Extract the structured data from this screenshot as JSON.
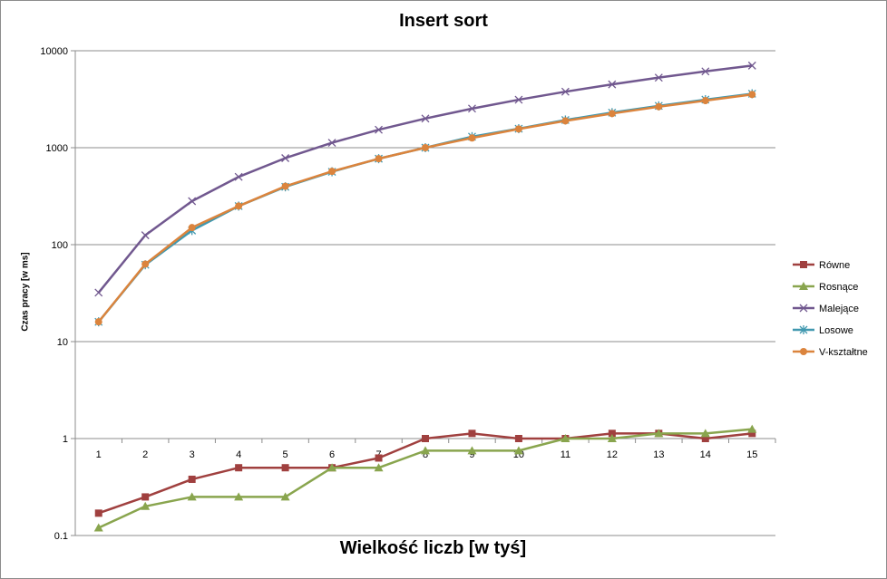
{
  "chart_data": {
    "type": "line",
    "title": "Insert sort",
    "xlabel": "Wielkość liczb [w tyś]",
    "ylabel": "Czas pracy [w ms]",
    "y_scale": "log",
    "ylim": [
      0.1,
      10000
    ],
    "y_ticks": [
      "0.1",
      "1",
      "10",
      "100",
      "1000",
      "10000"
    ],
    "categories": [
      "1",
      "2",
      "3",
      "4",
      "5",
      "6",
      "7",
      "8",
      "9",
      "10",
      "11",
      "12",
      "13",
      "14",
      "15"
    ],
    "grid": "horizontal",
    "legend_position": "right",
    "series": [
      {
        "name": "Równe",
        "color": "#a0403f",
        "marker": "square",
        "values": [
          0.17,
          0.25,
          0.38,
          0.5,
          0.5,
          0.5,
          0.63,
          1.0,
          1.13,
          1.0,
          1.0,
          1.13,
          1.13,
          1.0,
          1.13
        ]
      },
      {
        "name": "Rosnące",
        "color": "#89a54e",
        "marker": "triangle",
        "values": [
          0.12,
          0.2,
          0.25,
          0.25,
          0.25,
          0.5,
          0.5,
          0.75,
          0.75,
          0.75,
          1.0,
          1.0,
          1.13,
          1.13,
          1.25
        ]
      },
      {
        "name": "Malejące",
        "color": "#71588f",
        "marker": "x",
        "values": [
          32,
          125,
          281,
          500,
          781,
          1125,
          1531,
          2000,
          2531,
          3125,
          3781,
          4500,
          5281,
          6125,
          7031
        ]
      },
      {
        "name": "Losowe",
        "color": "#4198af",
        "marker": "star",
        "values": [
          16,
          62,
          140,
          250,
          395,
          565,
          770,
          1000,
          1300,
          1570,
          1930,
          2300,
          2700,
          3130,
          3600
        ]
      },
      {
        "name": "V-kształtne",
        "color": "#db843d",
        "marker": "circle",
        "values": [
          16,
          63,
          150,
          250,
          400,
          570,
          770,
          1000,
          1260,
          1560,
          1890,
          2250,
          2650,
          3060,
          3540
        ]
      }
    ]
  }
}
